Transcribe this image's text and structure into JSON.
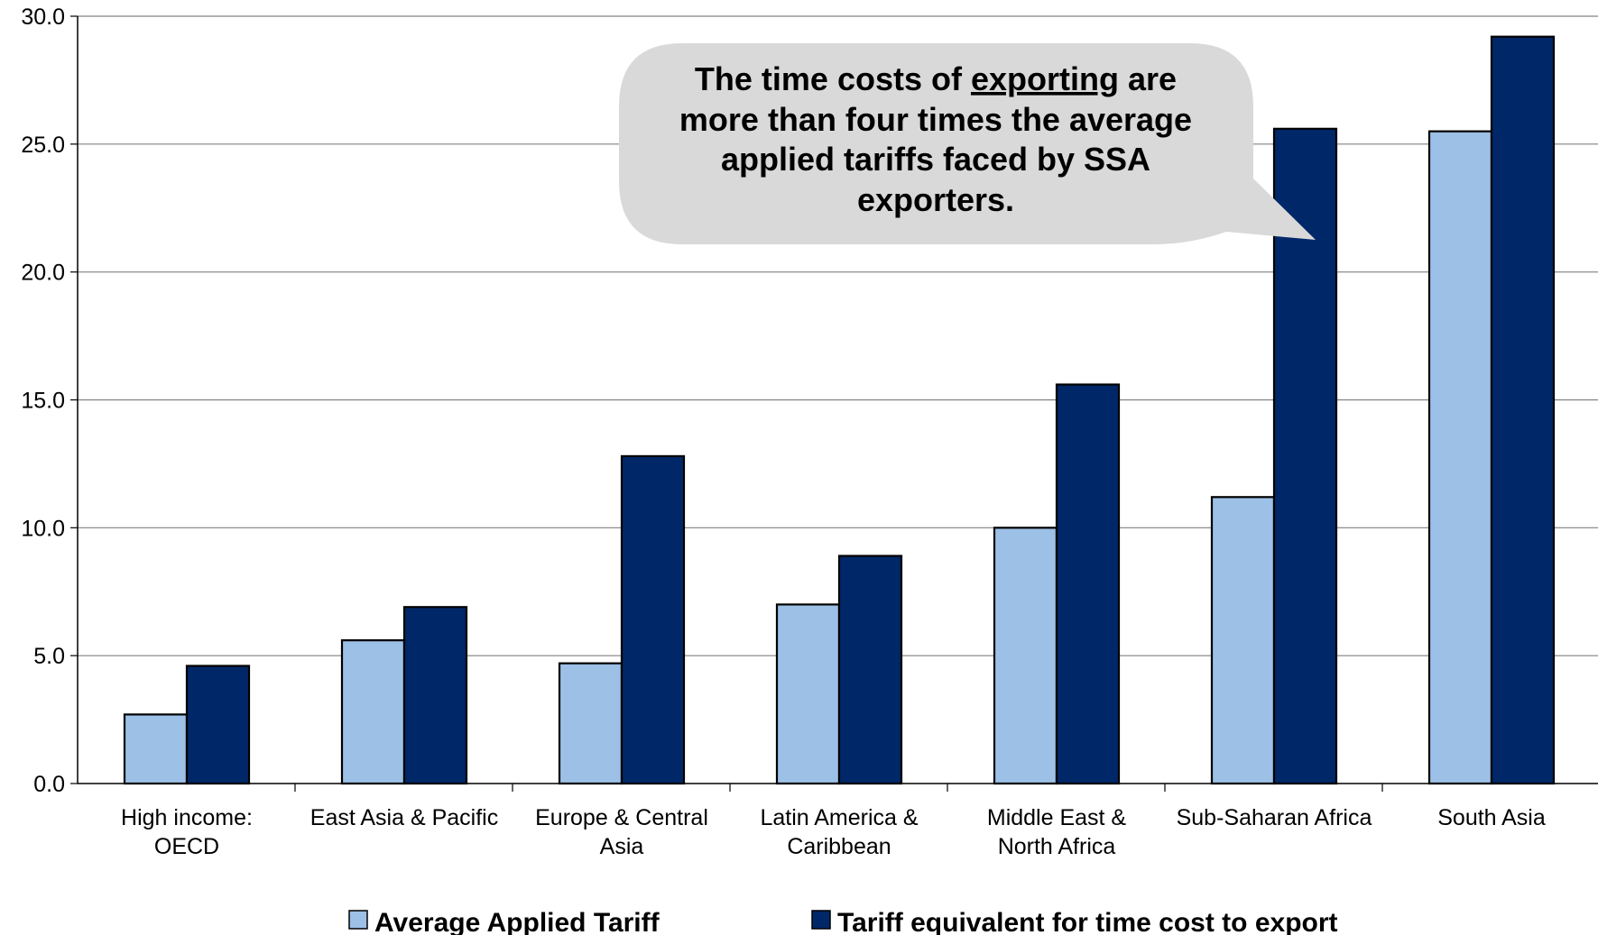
{
  "chart_data": {
    "type": "bar",
    "title": "",
    "xlabel": "",
    "ylabel": "",
    "categories": [
      "High income:\nOECD",
      "East Asia & Pacific",
      "Europe & Central\nAsia",
      "Latin America &\nCaribbean",
      "Middle East &\nNorth Africa",
      "Sub-Saharan Africa",
      "South Asia"
    ],
    "series": [
      {
        "name": "Average Applied Tariff",
        "values": [
          2.7,
          5.6,
          4.7,
          7.0,
          10.0,
          11.2,
          25.5
        ],
        "color": "#9dc0e6"
      },
      {
        "name": "Tariff equivalent for time cost to export",
        "values": [
          4.6,
          6.9,
          12.8,
          8.9,
          15.6,
          25.6,
          29.2
        ],
        "color": "#002868"
      }
    ],
    "ylim": [
      0,
      30
    ],
    "yticks": [
      0,
      5,
      10,
      15,
      20,
      25,
      30
    ],
    "ytick_format": "one-decimal",
    "grid": true,
    "legend": "bottom",
    "annotation": {
      "lines": [
        [
          "The time costs of ",
          "exporting",
          " are"
        ],
        [
          "more than four times the average"
        ],
        [
          "applied tariffs faced by SSA"
        ],
        [
          "exporters."
        ]
      ],
      "underlined": "exporting",
      "background": "#d9d9d9",
      "points_to": "Sub-Saharan Africa"
    }
  }
}
